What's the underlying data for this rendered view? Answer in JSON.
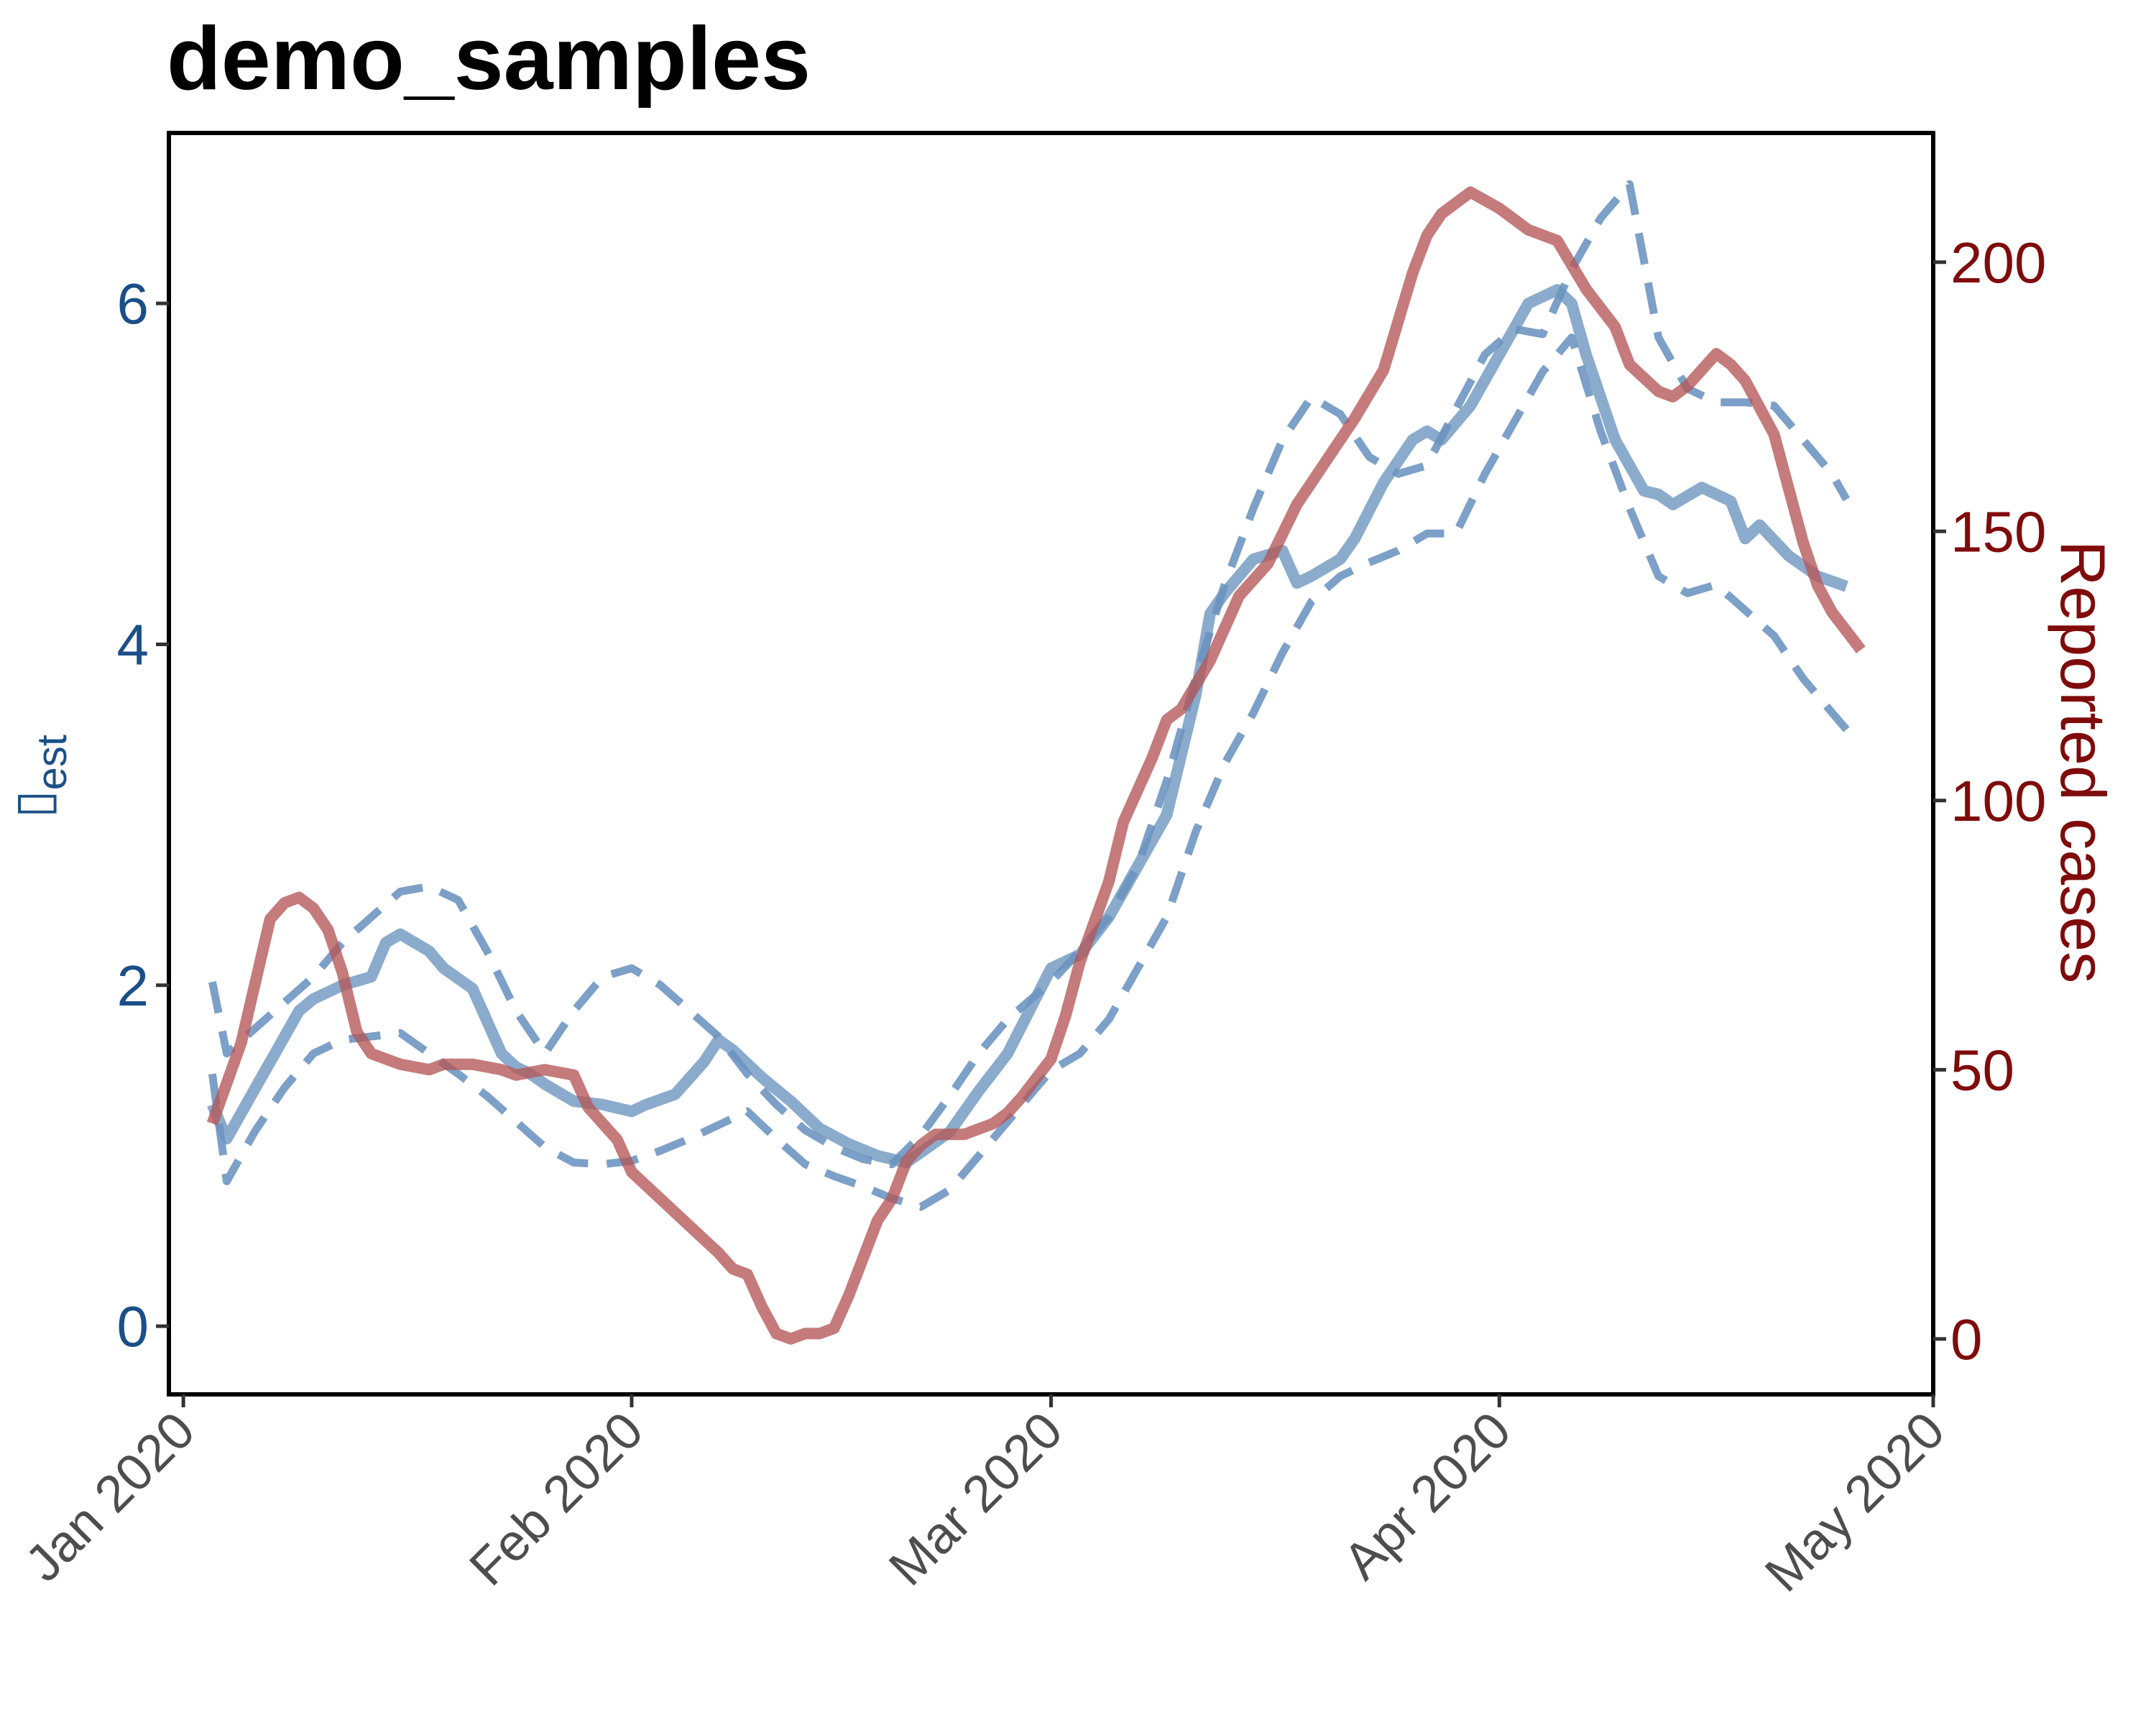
{
  "chart_data": {
    "type": "line",
    "title": "demo_samples",
    "ylabel_left": "▯",
    "ylabel_left_subscript": "est",
    "ylabel_right": "Reported cases",
    "x_ticks": [
      "2020-01-01",
      "2020-02-01",
      "2020-03-01",
      "2020-04-01",
      "2020-05-01"
    ],
    "x_tick_labels": [
      "Jan 2020",
      "Feb 2020",
      "Mar 2020",
      "Apr 2020",
      "May 2020"
    ],
    "xlim": [
      "2019-12-31",
      "2020-05-01"
    ],
    "ylim_left": [
      -0.4,
      7.0
    ],
    "yticks_left": [
      0,
      2,
      4,
      6
    ],
    "ylim_right": [
      -10.3,
      224
    ],
    "yticks_right": [
      0,
      50,
      100,
      150,
      200
    ],
    "grid": false,
    "colors": {
      "rt": "#6a93bf",
      "cases": "#b55656",
      "left_axis": "#1b4f87",
      "right_axis": "#7f0b0b"
    },
    "series": [
      {
        "axis": "left",
        "style": "solid",
        "x": [
          "2020-01-03",
          "2020-01-04",
          "2020-01-06",
          "2020-01-08",
          "2020-01-09",
          "2020-01-10",
          "2020-01-12",
          "2020-01-14",
          "2020-01-15",
          "2020-01-16",
          "2020-01-18",
          "2020-01-19",
          "2020-01-21",
          "2020-01-23",
          "2020-01-24",
          "2020-01-25",
          "2020-01-26",
          "2020-01-28",
          "2020-01-30",
          "2020-02-01",
          "2020-02-02",
          "2020-02-04",
          "2020-02-06",
          "2020-02-07",
          "2020-02-08",
          "2020-02-10",
          "2020-02-12",
          "2020-02-14",
          "2020-02-16",
          "2020-02-18",
          "2020-02-20",
          "2020-02-23",
          "2020-02-25",
          "2020-02-27",
          "2020-03-01",
          "2020-03-03",
          "2020-03-05",
          "2020-03-07",
          "2020-03-09",
          "2020-03-11",
          "2020-03-12",
          "2020-03-13",
          "2020-03-14",
          "2020-03-15",
          "2020-03-17",
          "2020-03-18",
          "2020-03-19",
          "2020-03-20",
          "2020-03-21",
          "2020-03-22",
          "2020-03-24",
          "2020-03-26",
          "2020-03-27",
          "2020-03-28",
          "2020-03-30",
          "2020-04-01",
          "2020-04-03",
          "2020-04-05",
          "2020-04-06",
          "2020-04-07",
          "2020-04-09",
          "2020-04-11",
          "2020-04-12",
          "2020-04-13",
          "2020-04-15",
          "2020-04-17",
          "2020-04-18",
          "2020-04-19",
          "2020-04-21",
          "2020-04-23",
          "2020-04-25"
        ],
        "y": [
          1.3,
          1.1,
          1.4,
          1.7,
          1.85,
          1.92,
          2.0,
          2.05,
          2.25,
          2.3,
          2.2,
          2.1,
          1.98,
          1.6,
          1.52,
          1.48,
          1.42,
          1.32,
          1.3,
          1.26,
          1.3,
          1.36,
          1.55,
          1.68,
          1.62,
          1.46,
          1.32,
          1.16,
          1.07,
          1.0,
          0.96,
          1.14,
          1.38,
          1.6,
          2.1,
          2.18,
          2.4,
          2.7,
          3.0,
          3.7,
          4.18,
          4.3,
          4.4,
          4.5,
          4.55,
          4.36,
          4.4,
          4.45,
          4.5,
          4.62,
          4.95,
          5.2,
          5.25,
          5.2,
          5.4,
          5.7,
          6.0,
          6.08,
          6.0,
          5.7,
          5.2,
          4.9,
          4.88,
          4.82,
          4.92,
          4.84,
          4.62,
          4.7,
          4.52,
          4.4,
          4.34
        ]
      },
      {
        "axis": "left",
        "style": "dashed",
        "x": [
          "2020-01-03",
          "2020-01-04",
          "2020-01-06",
          "2020-01-08",
          "2020-01-10",
          "2020-01-12",
          "2020-01-14",
          "2020-01-16",
          "2020-01-18",
          "2020-01-20",
          "2020-01-22",
          "2020-01-24",
          "2020-01-26",
          "2020-01-28",
          "2020-01-30",
          "2020-02-01",
          "2020-02-03",
          "2020-02-05",
          "2020-02-07",
          "2020-02-09",
          "2020-02-11",
          "2020-02-13",
          "2020-02-15",
          "2020-02-17",
          "2020-02-19",
          "2020-02-21",
          "2020-02-23",
          "2020-02-25",
          "2020-02-27",
          "2020-03-01",
          "2020-03-03",
          "2020-03-05",
          "2020-03-07",
          "2020-03-09",
          "2020-03-11",
          "2020-03-13",
          "2020-03-15",
          "2020-03-17",
          "2020-03-19",
          "2020-03-21",
          "2020-03-23",
          "2020-03-25",
          "2020-03-27",
          "2020-03-29",
          "2020-03-31",
          "2020-04-02",
          "2020-04-04",
          "2020-04-06",
          "2020-04-08",
          "2020-04-10",
          "2020-04-12",
          "2020-04-14",
          "2020-04-16",
          "2020-04-18",
          "2020-04-20",
          "2020-04-22",
          "2020-04-24",
          "2020-04-25"
        ],
        "y": [
          2.02,
          1.6,
          1.75,
          1.9,
          2.05,
          2.25,
          2.4,
          2.55,
          2.58,
          2.5,
          2.2,
          1.85,
          1.6,
          1.85,
          2.05,
          2.1,
          2.0,
          1.85,
          1.7,
          1.48,
          1.3,
          1.15,
          1.05,
          0.98,
          0.95,
          1.12,
          1.35,
          1.6,
          1.8,
          2.02,
          2.2,
          2.4,
          2.7,
          3.2,
          3.8,
          4.35,
          4.8,
          5.2,
          5.45,
          5.35,
          5.1,
          5.0,
          5.05,
          5.38,
          5.7,
          5.85,
          5.82,
          6.2,
          6.5,
          6.7,
          5.8,
          5.5,
          5.42,
          5.42,
          5.4,
          5.2,
          5.0,
          4.85
        ]
      },
      {
        "axis": "left",
        "style": "dashed",
        "x": [
          "2020-01-03",
          "2020-01-04",
          "2020-01-06",
          "2020-01-08",
          "2020-01-10",
          "2020-01-12",
          "2020-01-14",
          "2020-01-16",
          "2020-01-18",
          "2020-01-20",
          "2020-01-22",
          "2020-01-24",
          "2020-01-26",
          "2020-01-28",
          "2020-01-30",
          "2020-02-01",
          "2020-02-03",
          "2020-02-05",
          "2020-02-07",
          "2020-02-09",
          "2020-02-11",
          "2020-02-13",
          "2020-02-15",
          "2020-02-17",
          "2020-02-19",
          "2020-02-21",
          "2020-02-23",
          "2020-02-25",
          "2020-02-27",
          "2020-03-01",
          "2020-03-03",
          "2020-03-05",
          "2020-03-07",
          "2020-03-09",
          "2020-03-11",
          "2020-03-13",
          "2020-03-15",
          "2020-03-17",
          "2020-03-19",
          "2020-03-21",
          "2020-03-23",
          "2020-03-25",
          "2020-03-27",
          "2020-03-29",
          "2020-03-31",
          "2020-04-02",
          "2020-04-04",
          "2020-04-06",
          "2020-04-08",
          "2020-04-10",
          "2020-04-12",
          "2020-04-14",
          "2020-04-16",
          "2020-04-18",
          "2020-04-20",
          "2020-04-22",
          "2020-04-24",
          "2020-04-25"
        ],
        "y": [
          1.48,
          0.85,
          1.15,
          1.4,
          1.6,
          1.68,
          1.7,
          1.72,
          1.6,
          1.48,
          1.35,
          1.2,
          1.05,
          0.96,
          0.95,
          0.97,
          1.03,
          1.1,
          1.18,
          1.26,
          1.1,
          0.95,
          0.88,
          0.82,
          0.75,
          0.7,
          0.8,
          1.0,
          1.2,
          1.5,
          1.6,
          1.8,
          2.1,
          2.4,
          2.9,
          3.3,
          3.6,
          3.95,
          4.25,
          4.4,
          4.48,
          4.55,
          4.65,
          4.65,
          5.0,
          5.3,
          5.6,
          5.8,
          5.25,
          4.8,
          4.4,
          4.3,
          4.35,
          4.2,
          4.05,
          3.8,
          3.6,
          3.5
        ]
      },
      {
        "axis": "right",
        "style": "solid",
        "x": [
          "2020-01-03",
          "2020-01-05",
          "2020-01-07",
          "2020-01-08",
          "2020-01-09",
          "2020-01-10",
          "2020-01-11",
          "2020-01-12",
          "2020-01-13",
          "2020-01-14",
          "2020-01-16",
          "2020-01-18",
          "2020-01-19",
          "2020-01-21",
          "2020-01-23",
          "2020-01-24",
          "2020-01-26",
          "2020-01-28",
          "2020-01-29",
          "2020-01-31",
          "2020-02-01",
          "2020-02-03",
          "2020-02-05",
          "2020-02-07",
          "2020-02-08",
          "2020-02-09",
          "2020-02-10",
          "2020-02-11",
          "2020-02-12",
          "2020-02-13",
          "2020-02-14",
          "2020-02-15",
          "2020-02-16",
          "2020-02-17",
          "2020-02-18",
          "2020-02-19",
          "2020-02-20",
          "2020-02-21",
          "2020-02-22",
          "2020-02-24",
          "2020-02-26",
          "2020-02-27",
          "2020-02-28",
          "2020-03-01",
          "2020-03-02",
          "2020-03-03",
          "2020-03-05",
          "2020-03-06",
          "2020-03-08",
          "2020-03-09",
          "2020-03-10",
          "2020-03-12",
          "2020-03-14",
          "2020-03-16",
          "2020-03-18",
          "2020-03-20",
          "2020-03-22",
          "2020-03-24",
          "2020-03-26",
          "2020-03-27",
          "2020-03-28",
          "2020-03-30",
          "2020-04-01",
          "2020-04-03",
          "2020-04-05",
          "2020-04-07",
          "2020-04-09",
          "2020-04-10",
          "2020-04-12",
          "2020-04-13",
          "2020-04-14",
          "2020-04-16",
          "2020-04-17",
          "2020-04-18",
          "2020-04-20",
          "2020-04-22",
          "2020-04-23",
          "2020-04-24",
          "2020-04-26"
        ],
        "y": [
          40,
          55,
          78,
          81,
          82,
          80,
          76,
          68,
          57,
          53,
          51,
          50,
          51,
          51,
          50,
          49,
          50,
          49,
          43,
          37,
          31,
          26,
          21,
          16,
          13,
          12,
          6,
          1,
          0,
          1,
          1,
          2,
          8,
          15,
          22,
          26,
          33,
          36,
          38,
          38,
          40,
          42,
          45,
          52,
          60,
          70,
          85,
          96,
          108,
          115,
          117,
          126,
          138,
          144,
          155,
          163,
          171,
          180,
          198,
          205,
          209,
          213,
          210,
          206,
          204,
          195,
          188,
          181,
          176,
          175,
          177,
          183,
          181,
          178,
          168,
          148,
          140,
          135,
          128
        ]
      }
    ]
  }
}
